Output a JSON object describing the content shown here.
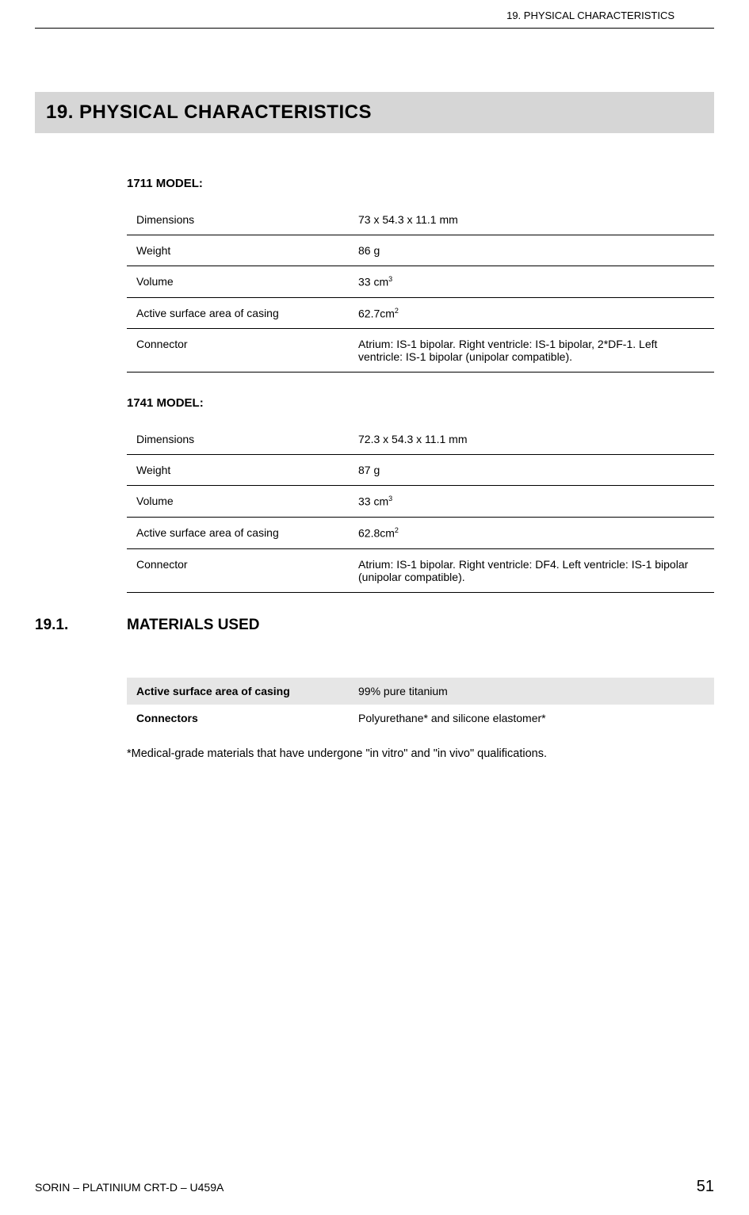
{
  "header": {
    "running_title": "19.  PHYSICAL CHARACTERISTICS"
  },
  "chapter": {
    "title": "19. PHYSICAL CHARACTERISTICS"
  },
  "models": [
    {
      "label": "1711 MODEL:",
      "rows": [
        {
          "prop": "Dimensions",
          "val": "73 x 54.3 x 11.1 mm"
        },
        {
          "prop": "Weight",
          "val": "86 g"
        },
        {
          "prop": "Volume",
          "val": "33 cm",
          "sup": "3"
        },
        {
          "prop": "Active surface area of casing",
          "val": "62.7cm",
          "sup": "2"
        },
        {
          "prop": "Connector",
          "val": "Atrium: IS-1 bipolar. Right ventricle: IS-1 bipolar, 2*DF-1. Left ventricle: IS-1 bipolar (unipolar compatible)."
        }
      ]
    },
    {
      "label": "1741 MODEL:",
      "rows": [
        {
          "prop": "Dimensions",
          "val": "72.3 x 54.3 x 11.1 mm"
        },
        {
          "prop": "Weight",
          "val": "87 g"
        },
        {
          "prop": "Volume",
          "val": "33 cm",
          "sup": "3"
        },
        {
          "prop": "Active surface area of casing",
          "val": "62.8cm",
          "sup": "2"
        },
        {
          "prop": "Connector",
          "val": "Atrium: IS-1 bipolar. Right ventricle: DF4. Left ventricle: IS-1 bipolar (unipolar compatible)."
        }
      ]
    }
  ],
  "section": {
    "num": "19.1.",
    "title": "MATERIALS USED",
    "materials": [
      {
        "prop": "Active surface area of casing",
        "val": "99% pure titanium",
        "shaded": true
      },
      {
        "prop": "Connectors",
        "val": "Polyurethane* and silicone elastomer*",
        "shaded": false
      }
    ],
    "footnote": "*Medical-grade materials that have undergone \"in vitro\" and \"in vivo\" qualifications."
  },
  "footer": {
    "left": "SORIN – PLATINIUM CRT-D – U459A",
    "page": "51"
  }
}
